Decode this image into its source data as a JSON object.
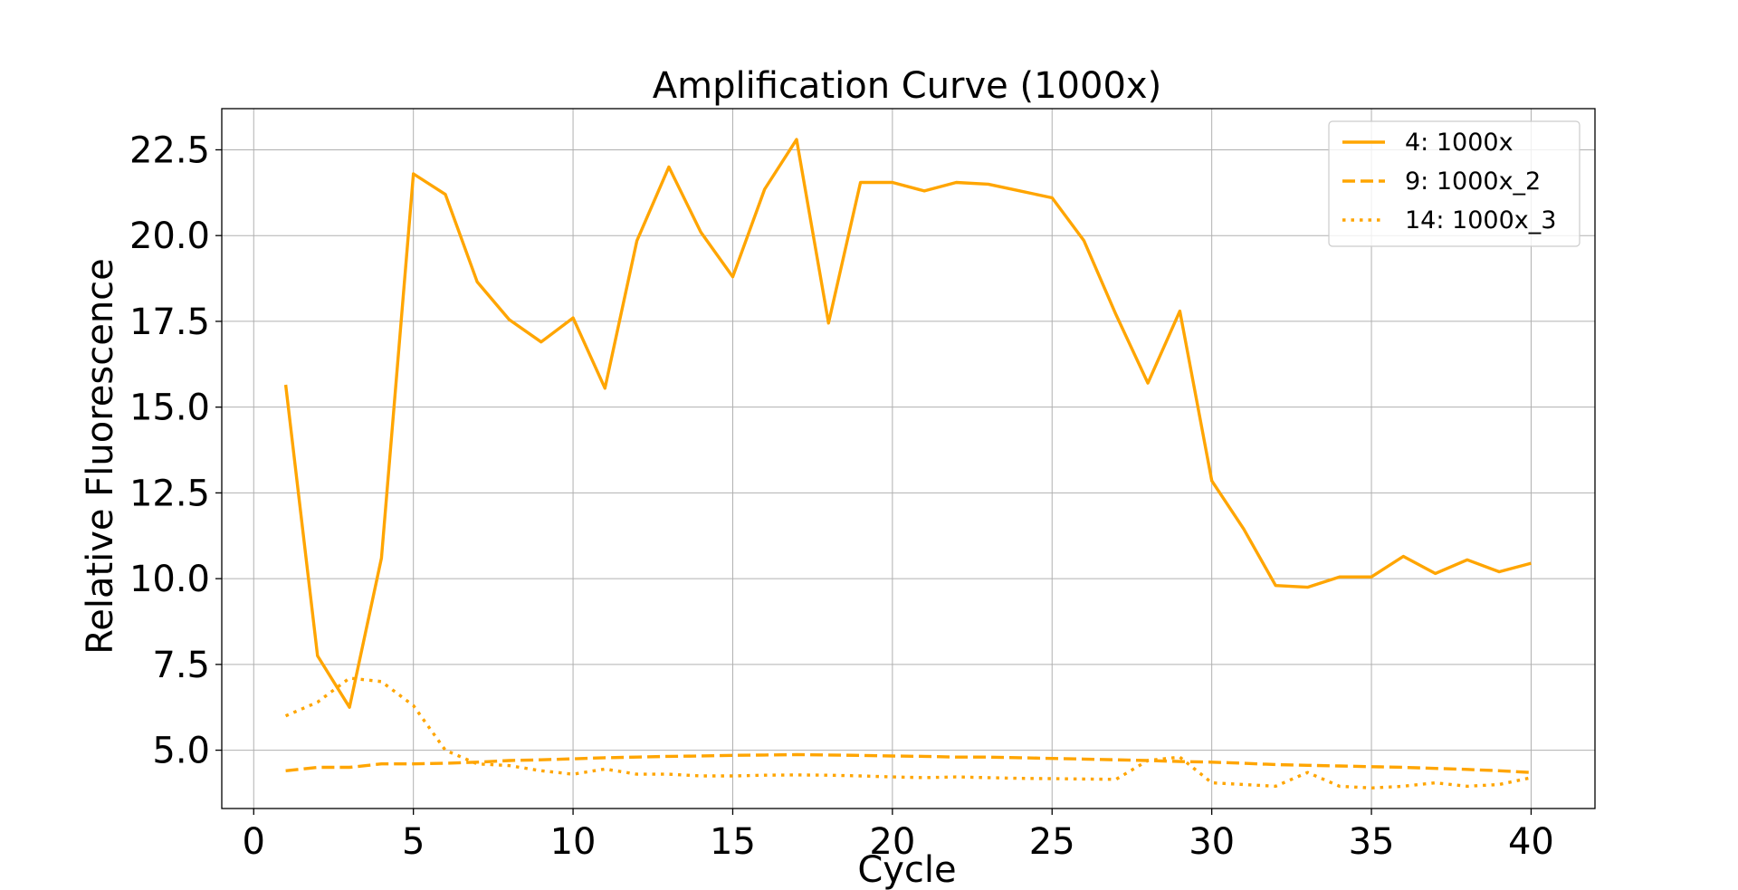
{
  "chart_data": {
    "type": "line",
    "title": "Amplification Curve (1000x)",
    "xlabel": "Cycle",
    "ylabel": "Relative Fluorescence",
    "xlim": [
      -1,
      42
    ],
    "ylim": [
      3.3,
      23.7
    ],
    "xticks": [
      0,
      5,
      10,
      15,
      20,
      25,
      30,
      35,
      40
    ],
    "yticks": [
      5.0,
      7.5,
      10.0,
      12.5,
      15.0,
      17.5,
      20.0,
      22.5
    ],
    "ytick_labels": [
      "5.0",
      "7.5",
      "10.0",
      "12.5",
      "15.0",
      "17.5",
      "20.0",
      "22.5"
    ],
    "grid": true,
    "legend_position": "top-right",
    "x": [
      1,
      2,
      3,
      4,
      5,
      6,
      7,
      8,
      9,
      10,
      11,
      12,
      13,
      14,
      15,
      16,
      17,
      18,
      19,
      20,
      21,
      22,
      23,
      24,
      25,
      26,
      27,
      28,
      29,
      30,
      31,
      32,
      33,
      34,
      35,
      36,
      37,
      38,
      39,
      40
    ],
    "series": [
      {
        "name": "4: 1000x",
        "color": "#FFA500",
        "linestyle": "solid",
        "values": [
          15.65,
          7.75,
          6.25,
          10.6,
          21.8,
          21.2,
          18.65,
          17.55,
          16.9,
          17.6,
          15.55,
          19.85,
          22.0,
          20.1,
          18.8,
          21.35,
          22.8,
          17.45,
          21.55,
          21.55,
          21.3,
          21.55,
          21.5,
          21.3,
          21.1,
          19.85,
          17.7,
          15.7,
          17.8,
          12.85,
          11.45,
          9.8,
          9.75,
          10.05,
          10.05,
          10.65,
          10.15,
          10.55,
          10.2,
          10.45
        ]
      },
      {
        "name": "9: 1000x_2",
        "color": "#FFA500",
        "linestyle": "dashed",
        "values": [
          4.4,
          4.5,
          4.5,
          4.6,
          4.6,
          4.62,
          4.65,
          4.7,
          4.72,
          4.75,
          4.78,
          4.8,
          4.82,
          4.83,
          4.85,
          4.86,
          4.87,
          4.86,
          4.85,
          4.83,
          4.82,
          4.8,
          4.8,
          4.78,
          4.76,
          4.74,
          4.72,
          4.7,
          4.67,
          4.65,
          4.62,
          4.58,
          4.56,
          4.54,
          4.52,
          4.5,
          4.47,
          4.44,
          4.4,
          4.35
        ]
      },
      {
        "name": "14: 1000x_3",
        "color": "#FFA500",
        "linestyle": "dotted",
        "values": [
          6.0,
          6.4,
          7.1,
          7.0,
          6.3,
          5.0,
          4.6,
          4.55,
          4.4,
          4.3,
          4.45,
          4.3,
          4.3,
          4.25,
          4.25,
          4.27,
          4.28,
          4.27,
          4.25,
          4.22,
          4.2,
          4.22,
          4.2,
          4.18,
          4.17,
          4.16,
          4.15,
          4.7,
          4.8,
          4.05,
          4.0,
          3.95,
          4.35,
          3.95,
          3.9,
          3.95,
          4.05,
          3.95,
          4.0,
          4.2
        ]
      }
    ]
  }
}
